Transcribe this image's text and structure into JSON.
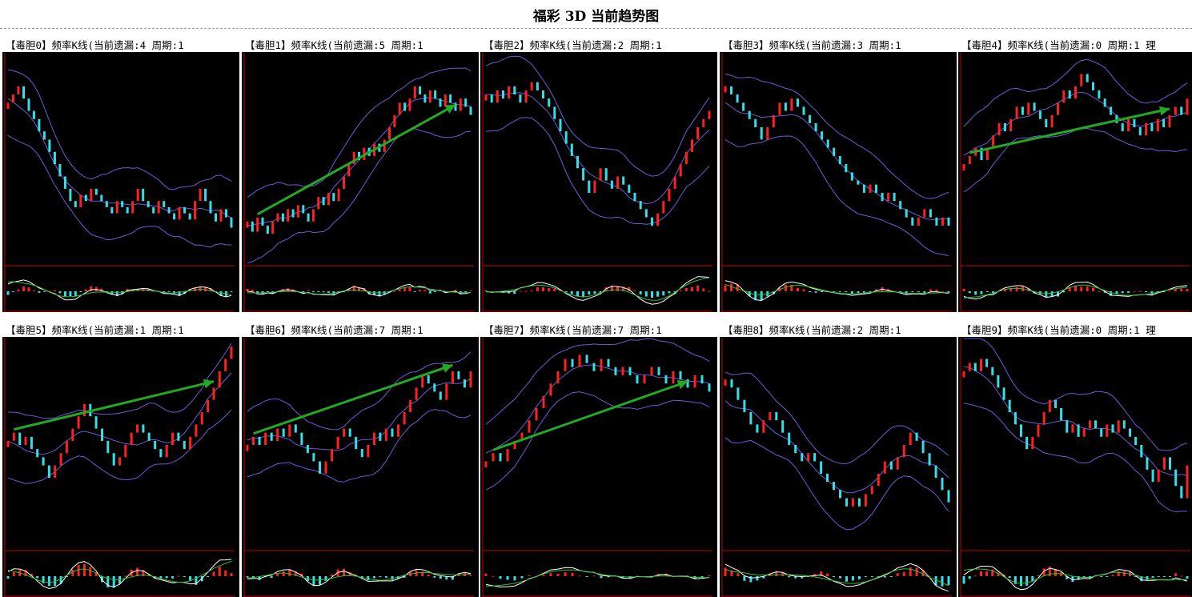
{
  "page_title": "福彩 3D 当前趋势图",
  "colors": {
    "background": "#000000",
    "axis": "#cc0000",
    "candle_up": "#ff2020",
    "candle_down": "#33e0e8",
    "bands": "#6a5cd8",
    "macd_fast": "#ffffff",
    "macd_slow": "#30c030",
    "trend_arrow": "#22aa22"
  },
  "panels": [
    {
      "title": "【毒胆0】频率K线(当前遗漏:4 周期:1",
      "trend": null
    },
    {
      "title": "【毒胆1】频率K线(当前遗漏:5 周期:1",
      "trend": "up"
    },
    {
      "title": "【毒胆2】频率K线(当前遗漏:2 周期:1",
      "trend": null
    },
    {
      "title": "【毒胆3】频率K线(当前遗漏:3 周期:1",
      "trend": null
    },
    {
      "title": "【毒胆4】频率K线(当前遗漏:0 周期:1 理",
      "trend": "up"
    },
    {
      "title": "【毒胆5】频率K线(当前遗漏:1 周期:1",
      "trend": "up"
    },
    {
      "title": "【毒胆6】频率K线(当前遗漏:7 周期:1",
      "trend": "up"
    },
    {
      "title": "【毒胆7】频率K线(当前遗漏:7 周期:1",
      "trend": "up"
    },
    {
      "title": "【毒胆8】频率K线(当前遗漏:2 周期:1",
      "trend": null
    },
    {
      "title": "【毒胆9】频率K线(当前遗漏:0 周期:1 理",
      "trend": null
    }
  ],
  "chart_data": [
    {
      "type": "candlestick",
      "title": "【毒胆0】频率K线(当前遗漏:4 周期:1",
      "series": [
        {
          "values": [
            0.78,
            0.82,
            0.86,
            0.8,
            0.74,
            0.7,
            0.64,
            0.6,
            0.54,
            0.48,
            0.42,
            0.36,
            0.3,
            0.27,
            0.33,
            0.3,
            0.36,
            0.33,
            0.3,
            0.27,
            0.24,
            0.3,
            0.27,
            0.24,
            0.3,
            0.36,
            0.3,
            0.27,
            0.24,
            0.3,
            0.27,
            0.24,
            0.21,
            0.27,
            0.24,
            0.21,
            0.3,
            0.36,
            0.3,
            0.24,
            0.2,
            0.26,
            0.22,
            0.17
          ]
        }
      ]
    },
    {
      "type": "candlestick",
      "title": "【毒胆1】频率K线(当前遗漏:5 周期:1",
      "series": [
        {
          "values": [
            0.2,
            0.15,
            0.22,
            0.18,
            0.14,
            0.2,
            0.24,
            0.2,
            0.26,
            0.22,
            0.28,
            0.24,
            0.2,
            0.26,
            0.32,
            0.28,
            0.34,
            0.3,
            0.36,
            0.42,
            0.48,
            0.54,
            0.5,
            0.56,
            0.52,
            0.58,
            0.54,
            0.6,
            0.66,
            0.72,
            0.78,
            0.74,
            0.8,
            0.86,
            0.82,
            0.78,
            0.84,
            0.8,
            0.76,
            0.82,
            0.78,
            0.74,
            0.8,
            0.76,
            0.72
          ]
        }
      ]
    },
    {
      "type": "candlestick",
      "title": "【毒胆2】频率K线(当前遗漏:2 周期:1",
      "series": [
        {
          "values": [
            0.82,
            0.78,
            0.84,
            0.8,
            0.86,
            0.82,
            0.78,
            0.84,
            0.88,
            0.84,
            0.8,
            0.76,
            0.7,
            0.64,
            0.58,
            0.52,
            0.46,
            0.4,
            0.34,
            0.4,
            0.46,
            0.4,
            0.36,
            0.42,
            0.38,
            0.34,
            0.3,
            0.26,
            0.22,
            0.18,
            0.24,
            0.3,
            0.36,
            0.42,
            0.48,
            0.54,
            0.6,
            0.66,
            0.7,
            0.74
          ]
        }
      ]
    },
    {
      "type": "candlestick",
      "title": "【毒胆3】频率K线(当前遗漏:3 周期:1",
      "series": [
        {
          "values": [
            0.86,
            0.82,
            0.78,
            0.74,
            0.7,
            0.66,
            0.6,
            0.66,
            0.72,
            0.78,
            0.74,
            0.8,
            0.76,
            0.72,
            0.68,
            0.64,
            0.6,
            0.56,
            0.52,
            0.48,
            0.44,
            0.4,
            0.38,
            0.34,
            0.38,
            0.34,
            0.3,
            0.34,
            0.3,
            0.26,
            0.22,
            0.18,
            0.22,
            0.26,
            0.22,
            0.18,
            0.22,
            0.18
          ]
        }
      ]
    },
    {
      "type": "candlestick",
      "title": "【毒胆4】频率K线(当前遗漏:0 周期:1 理",
      "series": [
        {
          "values": [
            0.48,
            0.52,
            0.56,
            0.5,
            0.56,
            0.62,
            0.68,
            0.64,
            0.7,
            0.76,
            0.72,
            0.78,
            0.74,
            0.7,
            0.66,
            0.72,
            0.78,
            0.84,
            0.8,
            0.86,
            0.92,
            0.88,
            0.84,
            0.8,
            0.76,
            0.72,
            0.68,
            0.64,
            0.7,
            0.66,
            0.62,
            0.68,
            0.64,
            0.7,
            0.66,
            0.72,
            0.76,
            0.72,
            0.8
          ]
        }
      ]
    },
    {
      "type": "candlestick",
      "title": "【毒胆5】频率K线(当前遗漏:1 周期:1",
      "series": [
        {
          "values": [
            0.52,
            0.56,
            0.5,
            0.54,
            0.48,
            0.44,
            0.4,
            0.34,
            0.4,
            0.46,
            0.52,
            0.58,
            0.64,
            0.7,
            0.64,
            0.58,
            0.52,
            0.46,
            0.4,
            0.44,
            0.5,
            0.56,
            0.6,
            0.56,
            0.52,
            0.48,
            0.44,
            0.5,
            0.56,
            0.52,
            0.48,
            0.54,
            0.6,
            0.66,
            0.72,
            0.78,
            0.86,
            0.92,
            0.98
          ]
        }
      ]
    },
    {
      "type": "candlestick",
      "title": "【毒胆6】频率K线(当前遗漏:7 周期:1",
      "series": [
        {
          "values": [
            0.5,
            0.54,
            0.5,
            0.56,
            0.52,
            0.58,
            0.54,
            0.6,
            0.56,
            0.5,
            0.46,
            0.42,
            0.36,
            0.42,
            0.48,
            0.54,
            0.58,
            0.54,
            0.48,
            0.44,
            0.5,
            0.56,
            0.52,
            0.58,
            0.54,
            0.6,
            0.66,
            0.72,
            0.78,
            0.84,
            0.8,
            0.76,
            0.72,
            0.8,
            0.86,
            0.82,
            0.78,
            0.86
          ]
        }
      ]
    },
    {
      "type": "candlestick",
      "title": "【毒胆7】频率K线(当前遗漏:7 周期:1",
      "series": [
        {
          "values": [
            0.42,
            0.46,
            0.42,
            0.48,
            0.52,
            0.56,
            0.62,
            0.68,
            0.74,
            0.8,
            0.86,
            0.92,
            0.88,
            0.94,
            0.9,
            0.86,
            0.92,
            0.88,
            0.84,
            0.88,
            0.84,
            0.8,
            0.84,
            0.88,
            0.84,
            0.8,
            0.86,
            0.82,
            0.78,
            0.84,
            0.8,
            0.76
          ]
        }
      ]
    },
    {
      "type": "candlestick",
      "title": "【毒胆8】频率K线(当前遗漏:2 周期:1",
      "series": [
        {
          "values": [
            0.82,
            0.78,
            0.72,
            0.66,
            0.6,
            0.56,
            0.62,
            0.66,
            0.62,
            0.56,
            0.5,
            0.46,
            0.42,
            0.46,
            0.42,
            0.36,
            0.32,
            0.28,
            0.24,
            0.2,
            0.24,
            0.2,
            0.26,
            0.3,
            0.36,
            0.42,
            0.38,
            0.44,
            0.5,
            0.56,
            0.52,
            0.46,
            0.4,
            0.34,
            0.28,
            0.22
          ]
        }
      ]
    },
    {
      "type": "candlestick",
      "title": "【毒胆9】频率K线(当前遗漏:0 周期:1 理",
      "series": [
        {
          "values": [
            0.86,
            0.9,
            0.86,
            0.92,
            0.88,
            0.84,
            0.78,
            0.72,
            0.66,
            0.6,
            0.54,
            0.48,
            0.54,
            0.6,
            0.66,
            0.72,
            0.68,
            0.62,
            0.56,
            0.6,
            0.54,
            0.58,
            0.62,
            0.58,
            0.54,
            0.6,
            0.56,
            0.62,
            0.58,
            0.54,
            0.5,
            0.44,
            0.38,
            0.32,
            0.38,
            0.44,
            0.38,
            0.3,
            0.24,
            0.4
          ]
        }
      ]
    }
  ]
}
